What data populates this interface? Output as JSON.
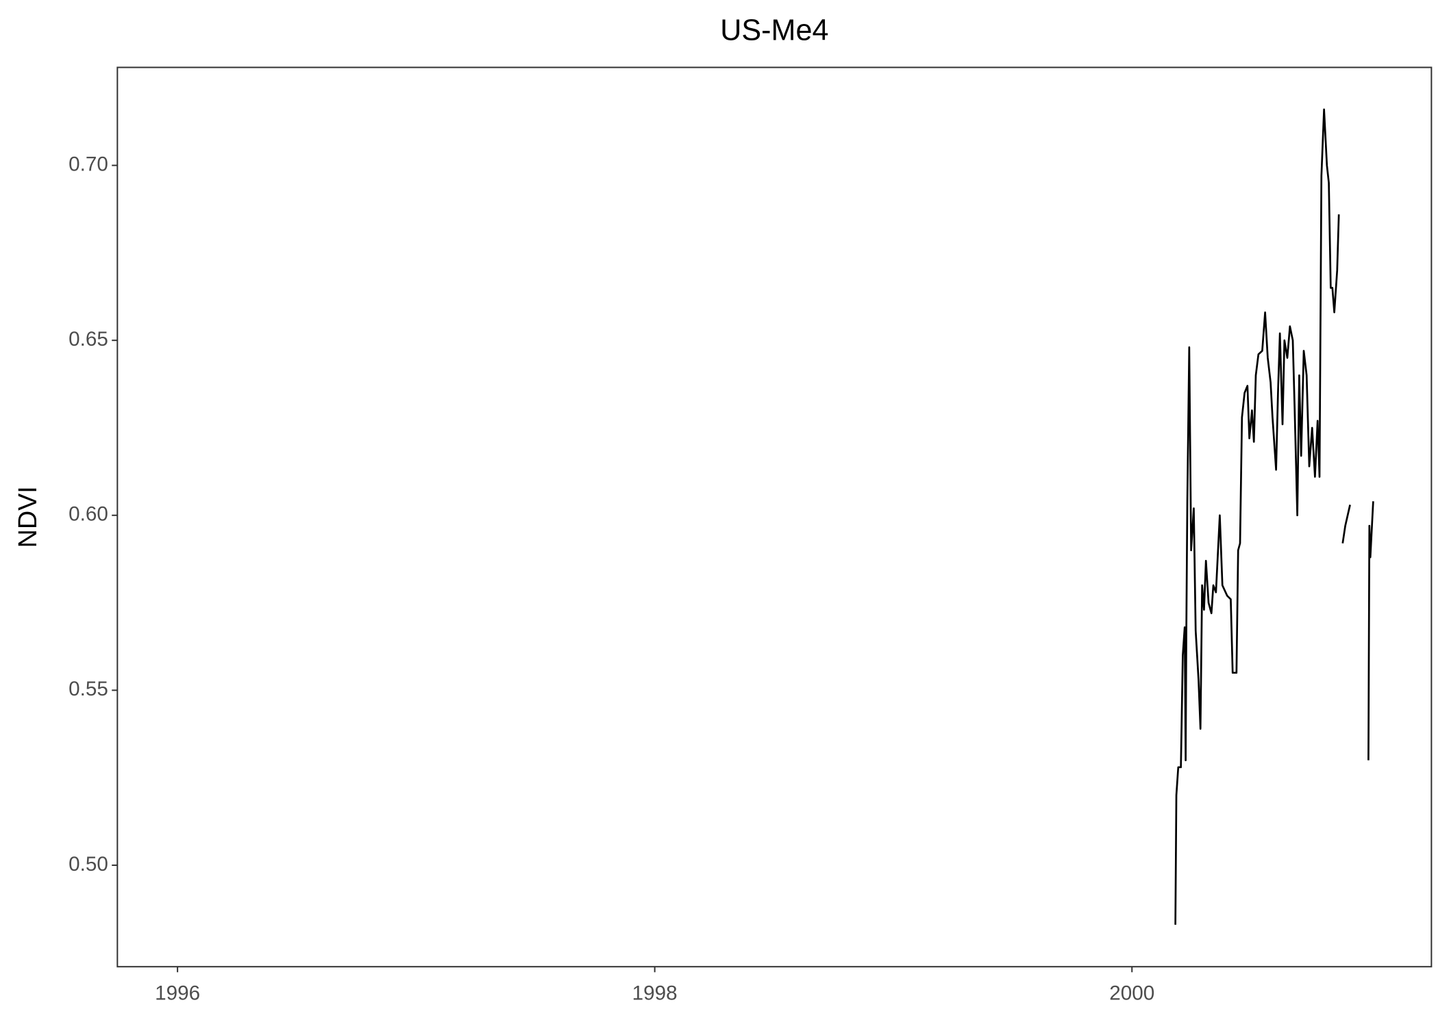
{
  "chart_data": {
    "type": "line",
    "title": "US-Me4",
    "y_label": "NDVI",
    "color": "#000000",
    "x": [
      2000.182,
      2000.186,
      2000.194,
      2000.205,
      2000.213,
      2000.221,
      2000.225,
      2000.228,
      2000.232,
      2000.24,
      2000.248,
      2000.259,
      2000.267,
      2000.279,
      2000.287,
      2000.294,
      2000.302,
      2000.31,
      2000.321,
      2000.333,
      2000.341,
      2000.352,
      2000.368,
      2000.379,
      2000.399,
      2000.414,
      2000.422,
      2000.438,
      2000.445,
      2000.453,
      2000.461,
      2000.472,
      2000.484,
      2000.492,
      2000.503,
      2000.511,
      2000.519,
      2000.53,
      2000.546,
      2000.558,
      2000.569,
      2000.581,
      2000.589,
      2000.604,
      2000.612,
      2000.62,
      2000.631,
      2000.639,
      2000.651,
      2000.662,
      2000.674,
      2000.682,
      2000.693,
      2000.701,
      2000.709,
      2000.72,
      2000.732,
      2000.743,
      2000.755,
      2000.767,
      2000.778,
      2000.786,
      2000.794,
      2000.805,
      2000.817,
      2000.825,
      2000.833,
      2000.84,
      2000.848,
      2000.86,
      2000.867,
      2000.875,
      2000.883,
      2000.894,
      2000.914,
      2000.95,
      2000.991,
      2000.995,
      2000.999,
      2001.011
    ],
    "values": [
      0.483,
      0.52,
      0.528,
      0.528,
      0.56,
      0.568,
      0.53,
      0.568,
      0.604,
      0.648,
      0.59,
      0.602,
      0.567,
      0.553,
      0.539,
      0.58,
      0.573,
      0.587,
      0.575,
      0.572,
      0.58,
      0.578,
      0.6,
      0.58,
      0.577,
      0.576,
      0.555,
      0.555,
      0.59,
      0.592,
      0.628,
      0.635,
      0.637,
      0.622,
      0.63,
      0.621,
      0.64,
      0.646,
      0.647,
      0.658,
      0.645,
      0.638,
      0.628,
      0.613,
      0.635,
      0.652,
      0.626,
      0.65,
      0.645,
      0.654,
      0.65,
      0.63,
      0.6,
      0.64,
      0.617,
      0.647,
      0.64,
      0.614,
      0.625,
      0.611,
      0.627,
      0.611,
      0.697,
      0.716,
      0.7,
      0.695,
      0.665,
      0.665,
      0.658,
      0.67,
      0.686,
      null,
      0.592,
      0.597,
      0.603,
      null,
      0.53,
      0.597,
      0.588,
      0.604
    ],
    "xlim": [
      1995.748,
      2001.255
    ],
    "xticks": [
      1996,
      1998,
      2000
    ],
    "ylim": [
      0.471,
      0.728
    ],
    "yticks": [
      {
        "value": 0.5,
        "label": "0.50"
      },
      0.55,
      {
        "value": 0.6,
        "label": "0.60"
      },
      0.65,
      {
        "value": 0.7,
        "label": "0.70"
      }
    ]
  }
}
